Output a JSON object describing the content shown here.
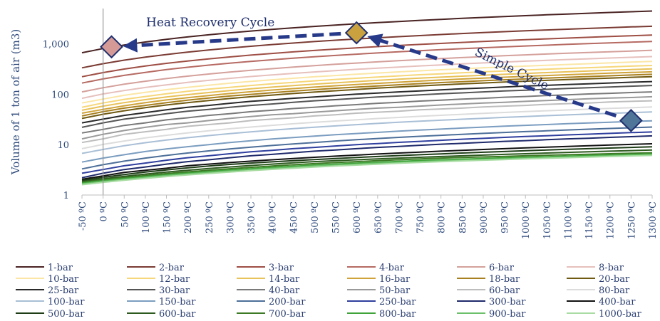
{
  "chart_data": {
    "type": "line",
    "title": "",
    "ylabel": "Volume of 1 ton of air (m3)",
    "xlabel": "",
    "yscale": "log",
    "ylim": [
      1,
      5000
    ],
    "yticks": [
      1,
      10,
      100,
      1000
    ],
    "ytick_labels": [
      "1",
      "10",
      "100",
      "1,000"
    ],
    "xlim": [
      -50,
      1300
    ],
    "x_tick_labels": [
      "-50 ºC",
      "0 ºC",
      "50 ºC",
      "100 ºC",
      "150 ºC",
      "200 ºC",
      "250 ºC",
      "300 ºC",
      "350 ºC",
      "400 ºC",
      "450 ºC",
      "500 ºC",
      "550 ºC",
      "600 ºC",
      "650 ºC",
      "700 ºC",
      "750 ºC",
      "800 ºC",
      "850 ºC",
      "900 ºC",
      "950 ºC",
      "1000 ºC",
      "1050 ºC",
      "1100 ºC",
      "1150 ºC",
      "1200 ºC",
      "1250 ºC",
      "1300 ºC"
    ],
    "x": [
      -50,
      0,
      50,
      100,
      150,
      200,
      250,
      300,
      350,
      400,
      450,
      500,
      550,
      600,
      650,
      700,
      750,
      800,
      850,
      900,
      950,
      1000,
      1050,
      1100,
      1150,
      1200,
      1250,
      1300
    ],
    "grid": false,
    "legend_position": "bottom",
    "series": [
      {
        "name": "1-bar",
        "color": "#4a2323",
        "values": [
          665,
          805,
          946,
          1086,
          1226,
          1367,
          1507,
          1648,
          1788,
          1928,
          2069,
          2209,
          2350,
          2490,
          2630,
          2771,
          2911,
          3052,
          3192,
          3332,
          3473,
          3613,
          3754,
          3894,
          4034,
          4175,
          4315,
          4456
        ]
      },
      {
        "name": "2-bar",
        "color": "#7a3b33",
        "values": [
          333,
          402,
          473,
          543,
          613,
          683,
          754,
          824,
          894,
          964,
          1034,
          1105,
          1175,
          1245,
          1315,
          1385,
          1456,
          1526,
          1596,
          1666,
          1736,
          1807,
          1877,
          1947,
          2017,
          2087,
          2158,
          2228
        ]
      },
      {
        "name": "3-bar",
        "color": "#9e4e44",
        "values": [
          222,
          268,
          315,
          362,
          409,
          456,
          502,
          549,
          596,
          643,
          690,
          736,
          783,
          830,
          877,
          924,
          970,
          1017,
          1064,
          1111,
          1158,
          1204,
          1251,
          1298,
          1345,
          1392,
          1438,
          1485
        ]
      },
      {
        "name": "4-bar",
        "color": "#b66a62",
        "values": [
          166,
          201,
          236,
          271,
          307,
          342,
          377,
          412,
          447,
          482,
          517,
          552,
          587,
          622,
          658,
          693,
          728,
          763,
          798,
          833,
          868,
          903,
          938,
          974,
          1009,
          1044,
          1079,
          1114
        ]
      },
      {
        "name": "6-bar",
        "color": "#d4a09b",
        "values": [
          111,
          134,
          158,
          181,
          204,
          228,
          251,
          275,
          298,
          321,
          345,
          368,
          392,
          415,
          438,
          462,
          485,
          509,
          532,
          555,
          579,
          602,
          626,
          649,
          672,
          696,
          719,
          743
        ]
      },
      {
        "name": "8-bar",
        "color": "#e6c0bc",
        "values": [
          83,
          101,
          118,
          136,
          153,
          171,
          188,
          206,
          224,
          241,
          259,
          276,
          294,
          311,
          329,
          346,
          364,
          381,
          399,
          417,
          434,
          452,
          469,
          487,
          504,
          522,
          539,
          557
        ]
      },
      {
        "name": "10-bar",
        "color": "#fbe6a6",
        "values": [
          67,
          80,
          95,
          109,
          123,
          137,
          151,
          165,
          179,
          193,
          207,
          221,
          235,
          249,
          263,
          277,
          291,
          305,
          319,
          333,
          347,
          361,
          375,
          389,
          403,
          417,
          432,
          446
        ]
      },
      {
        "name": "12-bar",
        "color": "#f6d77a",
        "values": [
          55,
          67,
          79,
          90,
          102,
          114,
          126,
          137,
          149,
          161,
          172,
          184,
          196,
          207,
          219,
          231,
          243,
          254,
          266,
          278,
          289,
          301,
          313,
          325,
          336,
          348,
          360,
          371
        ]
      },
      {
        "name": "14-bar",
        "color": "#e8c25a",
        "values": [
          48,
          58,
          68,
          78,
          88,
          98,
          108,
          118,
          128,
          138,
          148,
          158,
          168,
          178,
          188,
          198,
          208,
          218,
          228,
          238,
          248,
          258,
          268,
          278,
          288,
          298,
          308,
          318
        ]
      },
      {
        "name": "16-bar",
        "color": "#cfa33a",
        "values": [
          42,
          50,
          59,
          68,
          77,
          85,
          94,
          103,
          112,
          121,
          129,
          138,
          147,
          156,
          164,
          173,
          182,
          191,
          200,
          208,
          217,
          226,
          235,
          243,
          252,
          261,
          270,
          278
        ]
      },
      {
        "name": "18-bar",
        "color": "#a8801f",
        "values": [
          37,
          45,
          53,
          60,
          68,
          76,
          84,
          92,
          99,
          107,
          115,
          123,
          131,
          138,
          146,
          154,
          162,
          170,
          177,
          185,
          193,
          201,
          209,
          216,
          224,
          232,
          240,
          248
        ]
      },
      {
        "name": "20-bar",
        "color": "#705a12",
        "values": [
          33,
          40,
          47,
          54,
          61,
          68,
          75,
          82,
          89,
          96,
          103,
          110,
          117,
          124,
          132,
          139,
          146,
          153,
          160,
          167,
          174,
          181,
          188,
          195,
          202,
          209,
          216,
          223
        ]
      },
      {
        "name": "25-bar",
        "color": "#2a2a2a",
        "values": [
          27,
          32,
          38,
          43,
          49,
          55,
          60,
          66,
          72,
          77,
          83,
          88,
          94,
          100,
          105,
          111,
          116,
          122,
          128,
          133,
          139,
          145,
          150,
          156,
          161,
          167,
          173,
          178
        ]
      },
      {
        "name": "30-bar",
        "color": "#555555",
        "values": [
          22,
          27,
          32,
          36,
          41,
          46,
          50,
          55,
          60,
          64,
          69,
          74,
          78,
          83,
          88,
          92,
          97,
          102,
          106,
          111,
          116,
          120,
          125,
          130,
          134,
          139,
          144,
          149
        ]
      },
      {
        "name": "40-bar",
        "color": "#7a7a7a",
        "values": [
          17,
          20,
          24,
          27,
          31,
          34,
          38,
          41,
          45,
          48,
          52,
          55,
          59,
          62,
          66,
          69,
          73,
          76,
          80,
          83,
          87,
          90,
          94,
          97,
          101,
          104,
          108,
          111
        ]
      },
      {
        "name": "50-bar",
        "color": "#9a9a9a",
        "values": [
          13,
          16,
          19,
          22,
          25,
          27,
          30,
          33,
          36,
          39,
          41,
          44,
          47,
          50,
          53,
          55,
          58,
          61,
          64,
          67,
          69,
          72,
          75,
          78,
          81,
          84,
          86,
          89
        ]
      },
      {
        "name": "60-bar",
        "color": "#bdbdbd",
        "values": [
          11,
          13,
          16,
          18,
          20,
          23,
          25,
          27,
          30,
          32,
          34,
          37,
          39,
          42,
          44,
          46,
          49,
          51,
          53,
          56,
          58,
          60,
          63,
          65,
          67,
          70,
          72,
          74
        ]
      },
      {
        "name": "80-bar",
        "color": "#dcdcdc",
        "values": [
          8.3,
          10.1,
          11.8,
          13.6,
          15.3,
          17.1,
          18.8,
          20.6,
          22.3,
          24.1,
          25.9,
          27.6,
          29.4,
          31.1,
          32.9,
          34.6,
          36.4,
          38.1,
          39.9,
          41.7,
          43.4,
          45.2,
          46.9,
          48.7,
          50.4,
          52.2,
          53.9,
          55.7
        ]
      },
      {
        "name": "100-bar",
        "color": "#a9bfd6",
        "values": [
          6.7,
          8.0,
          9.5,
          10.9,
          12.3,
          13.7,
          15.1,
          16.5,
          17.9,
          19.3,
          20.7,
          22.1,
          23.5,
          24.9,
          26.3,
          27.7,
          29.1,
          30.5,
          31.9,
          33.3,
          34.7,
          36.1,
          37.5,
          38.9,
          40.3,
          41.7,
          43.2,
          44.6
        ]
      },
      {
        "name": "150-bar",
        "color": "#7b9dc0",
        "values": [
          4.5,
          5.4,
          6.3,
          7.3,
          8.2,
          9.1,
          10.0,
          11.0,
          11.9,
          12.9,
          13.8,
          14.7,
          15.7,
          16.6,
          17.5,
          18.5,
          19.4,
          20.3,
          21.3,
          22.2,
          23.2,
          24.1,
          25.0,
          26.0,
          26.9,
          27.8,
          28.8,
          29.7
        ]
      },
      {
        "name": "200-bar",
        "color": "#4d6f99",
        "values": [
          3.3,
          4.0,
          4.7,
          5.4,
          6.1,
          6.8,
          7.5,
          8.2,
          8.9,
          9.6,
          10.3,
          11.0,
          11.8,
          12.5,
          13.2,
          13.9,
          14.6,
          15.3,
          16.0,
          16.7,
          17.4,
          18.1,
          18.8,
          19.5,
          20.2,
          20.9,
          21.6,
          22.3
        ]
      },
      {
        "name": "250-bar",
        "color": "#2f3f9e",
        "values": [
          2.7,
          3.2,
          3.8,
          4.3,
          4.9,
          5.5,
          6.0,
          6.6,
          7.2,
          7.7,
          8.3,
          8.8,
          9.4,
          10.0,
          10.5,
          11.1,
          11.6,
          12.2,
          12.8,
          13.3,
          13.9,
          14.5,
          15.0,
          15.6,
          16.1,
          16.7,
          17.3,
          17.8
        ]
      },
      {
        "name": "300-bar",
        "color": "#1f2a6b",
        "values": [
          2.2,
          2.7,
          3.2,
          3.6,
          4.1,
          4.6,
          5.0,
          5.5,
          6.0,
          6.4,
          6.9,
          7.4,
          7.8,
          8.3,
          8.8,
          9.2,
          9.7,
          10.2,
          10.6,
          11.1,
          11.6,
          12.0,
          12.5,
          13.0,
          13.4,
          13.9,
          14.4,
          14.9
        ]
      },
      {
        "name": "400-bar",
        "color": "#111111",
        "values": [
          2.05,
          2.4,
          2.8,
          3.1,
          3.4,
          3.8,
          4.1,
          4.4,
          4.7,
          5.0,
          5.3,
          5.6,
          5.9,
          6.2,
          6.5,
          6.8,
          7.1,
          7.4,
          7.7,
          8.0,
          8.3,
          8.6,
          8.9,
          9.2,
          9.5,
          9.8,
          10.1,
          10.4
        ]
      },
      {
        "name": "500-bar",
        "color": "#1e3d17",
        "values": [
          1.95,
          2.25,
          2.55,
          2.85,
          3.15,
          3.45,
          3.75,
          4.05,
          4.3,
          4.55,
          4.8,
          5.05,
          5.3,
          5.55,
          5.8,
          6.05,
          6.3,
          6.55,
          6.8,
          7.05,
          7.3,
          7.55,
          7.8,
          8.05,
          8.3,
          8.55,
          8.8,
          9.05
        ]
      },
      {
        "name": "600-bar",
        "color": "#2d5a1f",
        "values": [
          1.85,
          2.1,
          2.35,
          2.6,
          2.85,
          3.1,
          3.35,
          3.6,
          3.85,
          4.1,
          4.35,
          4.6,
          4.8,
          5.0,
          5.2,
          5.4,
          5.6,
          5.8,
          6.0,
          6.2,
          6.4,
          6.6,
          6.8,
          7.0,
          7.2,
          7.4,
          7.6,
          7.8
        ]
      },
      {
        "name": "700-bar",
        "color": "#3d7a25",
        "values": [
          1.78,
          2.0,
          2.22,
          2.44,
          2.66,
          2.88,
          3.1,
          3.32,
          3.54,
          3.76,
          3.98,
          4.2,
          4.4,
          4.6,
          4.8,
          5.0,
          5.2,
          5.4,
          5.55,
          5.7,
          5.85,
          6.0,
          6.15,
          6.3,
          6.45,
          6.6,
          6.75,
          6.9
        ]
      },
      {
        "name": "800-bar",
        "color": "#3fa33a",
        "values": [
          1.72,
          1.92,
          2.12,
          2.32,
          2.52,
          2.72,
          2.92,
          3.12,
          3.32,
          3.52,
          3.72,
          3.92,
          4.1,
          4.28,
          4.46,
          4.64,
          4.82,
          5.0,
          5.15,
          5.3,
          5.45,
          5.6,
          5.75,
          5.9,
          6.05,
          6.2,
          6.35,
          6.5
        ]
      },
      {
        "name": "900-bar",
        "color": "#6cc06a",
        "values": [
          1.66,
          1.85,
          2.04,
          2.23,
          2.42,
          2.61,
          2.8,
          2.99,
          3.18,
          3.37,
          3.56,
          3.75,
          3.92,
          4.09,
          4.26,
          4.43,
          4.6,
          4.77,
          4.92,
          5.07,
          5.22,
          5.37,
          5.52,
          5.67,
          5.82,
          5.97,
          6.12,
          6.27
        ]
      },
      {
        "name": "1000-bar",
        "color": "#a8dca2",
        "values": [
          1.6,
          1.78,
          1.96,
          2.14,
          2.32,
          2.5,
          2.68,
          2.86,
          3.04,
          3.22,
          3.4,
          3.58,
          3.75,
          3.92,
          4.09,
          4.26,
          4.43,
          4.6,
          4.75,
          4.9,
          5.05,
          5.2,
          5.35,
          5.5,
          5.65,
          5.8,
          5.95,
          6.1
        ]
      }
    ],
    "annotations": {
      "heat_recovery_label": "Heat Recovery Cycle",
      "simple_cycle_label": "Simple Cycle",
      "markers": [
        {
          "name": "compressed",
          "x": 1250,
          "y": 30,
          "color": "#4f7599"
        },
        {
          "name": "hot",
          "x": 600,
          "y": 1650,
          "color": "#c9a13e"
        },
        {
          "name": "recovered",
          "x": 20,
          "y": 870,
          "color": "#d69a96"
        }
      ]
    }
  }
}
